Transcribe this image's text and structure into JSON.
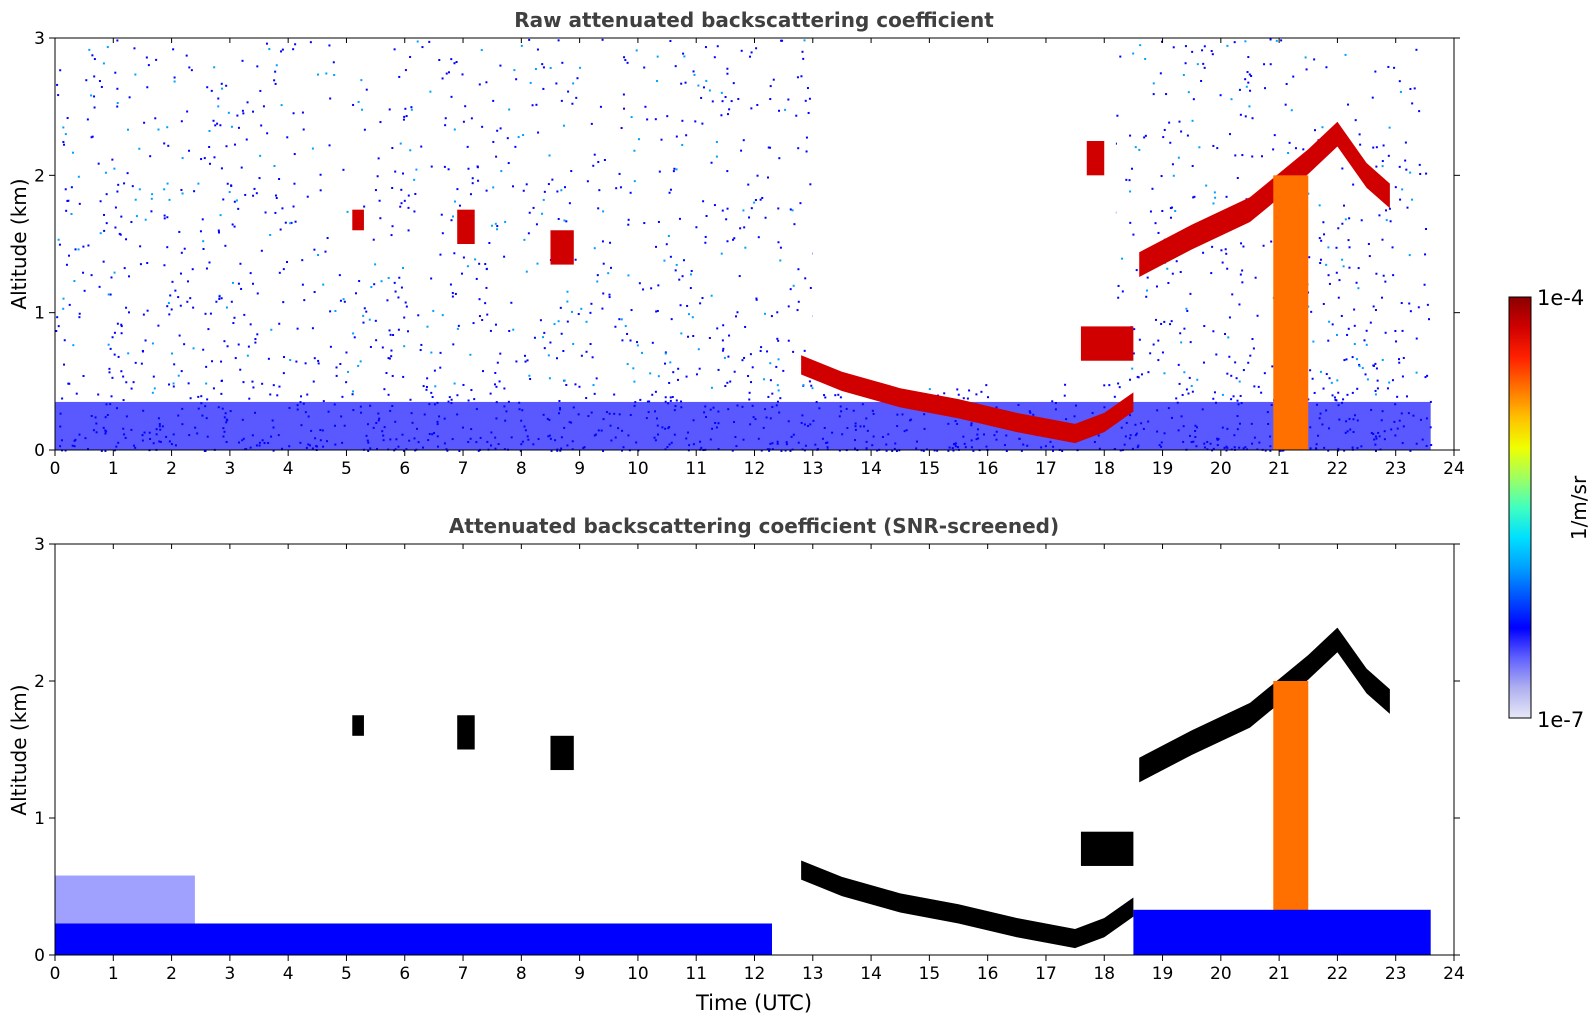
{
  "chart_data": [
    {
      "type": "heatmap",
      "title": "Raw attenuated backscattering coefficient",
      "xlabel": "",
      "ylabel": "Altitude (km)",
      "xlim": [
        0,
        24
      ],
      "ylim": [
        0,
        3
      ],
      "xticks": [
        "0",
        "1",
        "2",
        "3",
        "4",
        "5",
        "6",
        "7",
        "8",
        "9",
        "10",
        "11",
        "12",
        "13",
        "14",
        "15",
        "16",
        "17",
        "18",
        "19",
        "20",
        "21",
        "22",
        "23",
        "24"
      ],
      "yticks": [
        "0",
        "1",
        "2",
        "3"
      ],
      "features": [
        {
          "kind": "noise",
          "description_units": "time_h / altitude_km",
          "x": [
            0,
            23.6
          ],
          "y": [
            0,
            3
          ],
          "level": "low"
        },
        {
          "kind": "no_signal",
          "x": [
            13.0,
            18.2
          ],
          "y": [
            0.5,
            3.0
          ]
        },
        {
          "kind": "boundary_layer_top",
          "points": [
            [
              12.8,
              0.62
            ],
            [
              13.5,
              0.5
            ],
            [
              14.5,
              0.38
            ],
            [
              15.5,
              0.3
            ],
            [
              16.5,
              0.2
            ],
            [
              17.5,
              0.12
            ],
            [
              18.0,
              0.2
            ],
            [
              18.5,
              0.35
            ]
          ],
          "level": "high"
        },
        {
          "kind": "cloud",
          "x": [
            5.1,
            5.3
          ],
          "y": [
            1.6,
            1.75
          ],
          "level": "high"
        },
        {
          "kind": "cloud",
          "x": [
            6.9,
            7.2
          ],
          "y": [
            1.5,
            1.75
          ],
          "level": "high"
        },
        {
          "kind": "cloud",
          "x": [
            8.5,
            8.9
          ],
          "y": [
            1.35,
            1.6
          ],
          "level": "high"
        },
        {
          "kind": "cloud",
          "x": [
            17.6,
            18.5
          ],
          "y": [
            0.65,
            0.9
          ],
          "level": "high"
        },
        {
          "kind": "cloud",
          "x": [
            17.7,
            18.0
          ],
          "y": [
            2.0,
            2.25
          ],
          "level": "high"
        },
        {
          "kind": "cloud_layer",
          "points": [
            [
              18.6,
              1.35
            ],
            [
              19.5,
              1.55
            ],
            [
              20.5,
              1.75
            ],
            [
              21.5,
              2.1
            ],
            [
              22.0,
              2.3
            ],
            [
              22.5,
              2.0
            ],
            [
              22.9,
              1.85
            ]
          ],
          "level": "high"
        },
        {
          "kind": "precipitation_shaft",
          "x": [
            20.9,
            21.5
          ],
          "y": [
            0,
            2.0
          ],
          "level": "medium-high"
        }
      ]
    },
    {
      "type": "heatmap",
      "title": "Attenuated backscattering coefficient (SNR-screened)",
      "xlabel": "Time (UTC)",
      "ylabel": "Altitude (km)",
      "xlim": [
        0,
        24
      ],
      "ylim": [
        0,
        3
      ],
      "xticks": [
        "0",
        "1",
        "2",
        "3",
        "4",
        "5",
        "6",
        "7",
        "8",
        "9",
        "10",
        "11",
        "12",
        "13",
        "14",
        "15",
        "16",
        "17",
        "18",
        "19",
        "20",
        "21",
        "22",
        "23",
        "24"
      ],
      "yticks": [
        "0",
        "1",
        "2",
        "3"
      ],
      "features": [
        {
          "kind": "surface_layer",
          "x": [
            0,
            12.3
          ],
          "y": [
            0,
            0.23
          ],
          "level": "low"
        },
        {
          "kind": "residual_layer",
          "x": [
            0,
            2.4
          ],
          "y": [
            0.23,
            0.58
          ],
          "level": "low"
        },
        {
          "kind": "boundary_layer_top",
          "points": [
            [
              12.8,
              0.62
            ],
            [
              13.5,
              0.5
            ],
            [
              14.5,
              0.38
            ],
            [
              15.5,
              0.3
            ],
            [
              16.5,
              0.2
            ],
            [
              17.5,
              0.12
            ],
            [
              18.0,
              0.2
            ],
            [
              18.5,
              0.35
            ]
          ],
          "level": "saturated"
        },
        {
          "kind": "cloud",
          "x": [
            5.1,
            5.3
          ],
          "y": [
            1.6,
            1.75
          ],
          "level": "saturated"
        },
        {
          "kind": "cloud",
          "x": [
            6.9,
            7.2
          ],
          "y": [
            1.5,
            1.75
          ],
          "level": "saturated"
        },
        {
          "kind": "cloud",
          "x": [
            8.5,
            8.9
          ],
          "y": [
            1.35,
            1.6
          ],
          "level": "saturated"
        },
        {
          "kind": "cloud",
          "x": [
            17.6,
            18.5
          ],
          "y": [
            0.65,
            0.9
          ],
          "level": "saturated"
        },
        {
          "kind": "cloud_layer",
          "points": [
            [
              18.6,
              1.35
            ],
            [
              19.5,
              1.55
            ],
            [
              20.5,
              1.75
            ],
            [
              21.5,
              2.1
            ],
            [
              22.0,
              2.3
            ],
            [
              22.5,
              2.0
            ],
            [
              22.9,
              1.85
            ]
          ],
          "level": "saturated"
        },
        {
          "kind": "precipitation_shaft",
          "x": [
            20.9,
            21.5
          ],
          "y": [
            0,
            2.0
          ],
          "level": "medium-high"
        },
        {
          "kind": "surface_layer",
          "x": [
            18.5,
            23.6
          ],
          "y": [
            0,
            0.33
          ],
          "level": "low"
        }
      ]
    }
  ],
  "colorbar": {
    "label": "1/m/sr",
    "max_label": "1e-4",
    "min_label": "1e-7",
    "scale": "log",
    "range": [
      1e-07,
      0.0001
    ],
    "colors": [
      "#e8e8f8",
      "#b0b0f0",
      "#6060ff",
      "#0000ff",
      "#0050ff",
      "#00a0ff",
      "#00e0ff",
      "#40ffc0",
      "#a0ff60",
      "#f0ff00",
      "#ffc000",
      "#ff7000",
      "#ff2000",
      "#d00000",
      "#8b0000"
    ]
  }
}
